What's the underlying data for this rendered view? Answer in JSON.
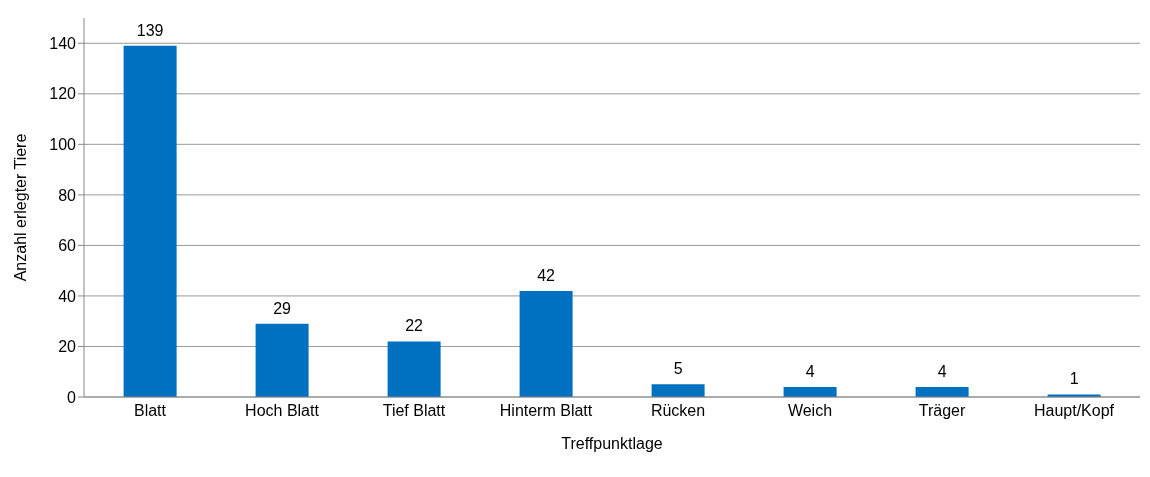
{
  "chart_data": {
    "type": "bar",
    "xlabel": "Treffpunktlage",
    "ylabel": "Anzahl erlegter Tiere",
    "categories": [
      "Blatt",
      "Hoch Blatt",
      "Tief Blatt",
      "Hinterm Blatt",
      "Rücken",
      "Weich",
      "Träger",
      "Haupt/Kopf"
    ],
    "values": [
      139,
      29,
      22,
      42,
      5,
      4,
      4,
      1
    ],
    "color": "#0070c0",
    "ylim": [
      0,
      150
    ],
    "yticks": [
      0,
      20,
      40,
      60,
      80,
      100,
      120,
      140
    ],
    "grid": "y",
    "data_labels": true
  }
}
